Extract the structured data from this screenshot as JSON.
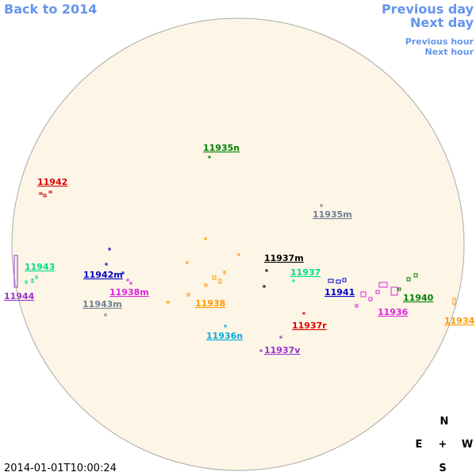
{
  "nav": {
    "back": "Back to 2014",
    "previous_day": "Previous day",
    "next_day": "Next day",
    "previous_hour": "Previous hour",
    "next_hour": "Next hour"
  },
  "regions": [
    {
      "label": "11935n",
      "color": "#008000"
    },
    {
      "label": "11942",
      "color": "#dd0000"
    },
    {
      "label": "11935m",
      "color": "#708090"
    },
    {
      "label": "11943",
      "color": "#00dd88"
    },
    {
      "label": "11944",
      "color": "#9933cc"
    },
    {
      "label": "11942m",
      "color": "#0000cc"
    },
    {
      "label": "11938m",
      "color": "#dd22dd"
    },
    {
      "label": "11943m",
      "color": "#708090"
    },
    {
      "label": "11938",
      "color": "#ff9900"
    },
    {
      "label": "11937m",
      "color": "#000000"
    },
    {
      "label": "11937",
      "color": "#00dd88"
    },
    {
      "label": "11941",
      "color": "#0000cc"
    },
    {
      "label": "11940",
      "color": "#008000"
    },
    {
      "label": "11936",
      "color": "#dd22dd"
    },
    {
      "label": "11934",
      "color": "#ff9900"
    },
    {
      "label": "11937r",
      "color": "#dd0000"
    },
    {
      "label": "11936n",
      "color": "#00aadd"
    },
    {
      "label": "11937v",
      "color": "#9933cc"
    }
  ],
  "compass": {
    "n": "N",
    "e": "E",
    "center": "+",
    "w": "W",
    "s": "S"
  },
  "timestamp": "2014-01-01T10:00:24"
}
